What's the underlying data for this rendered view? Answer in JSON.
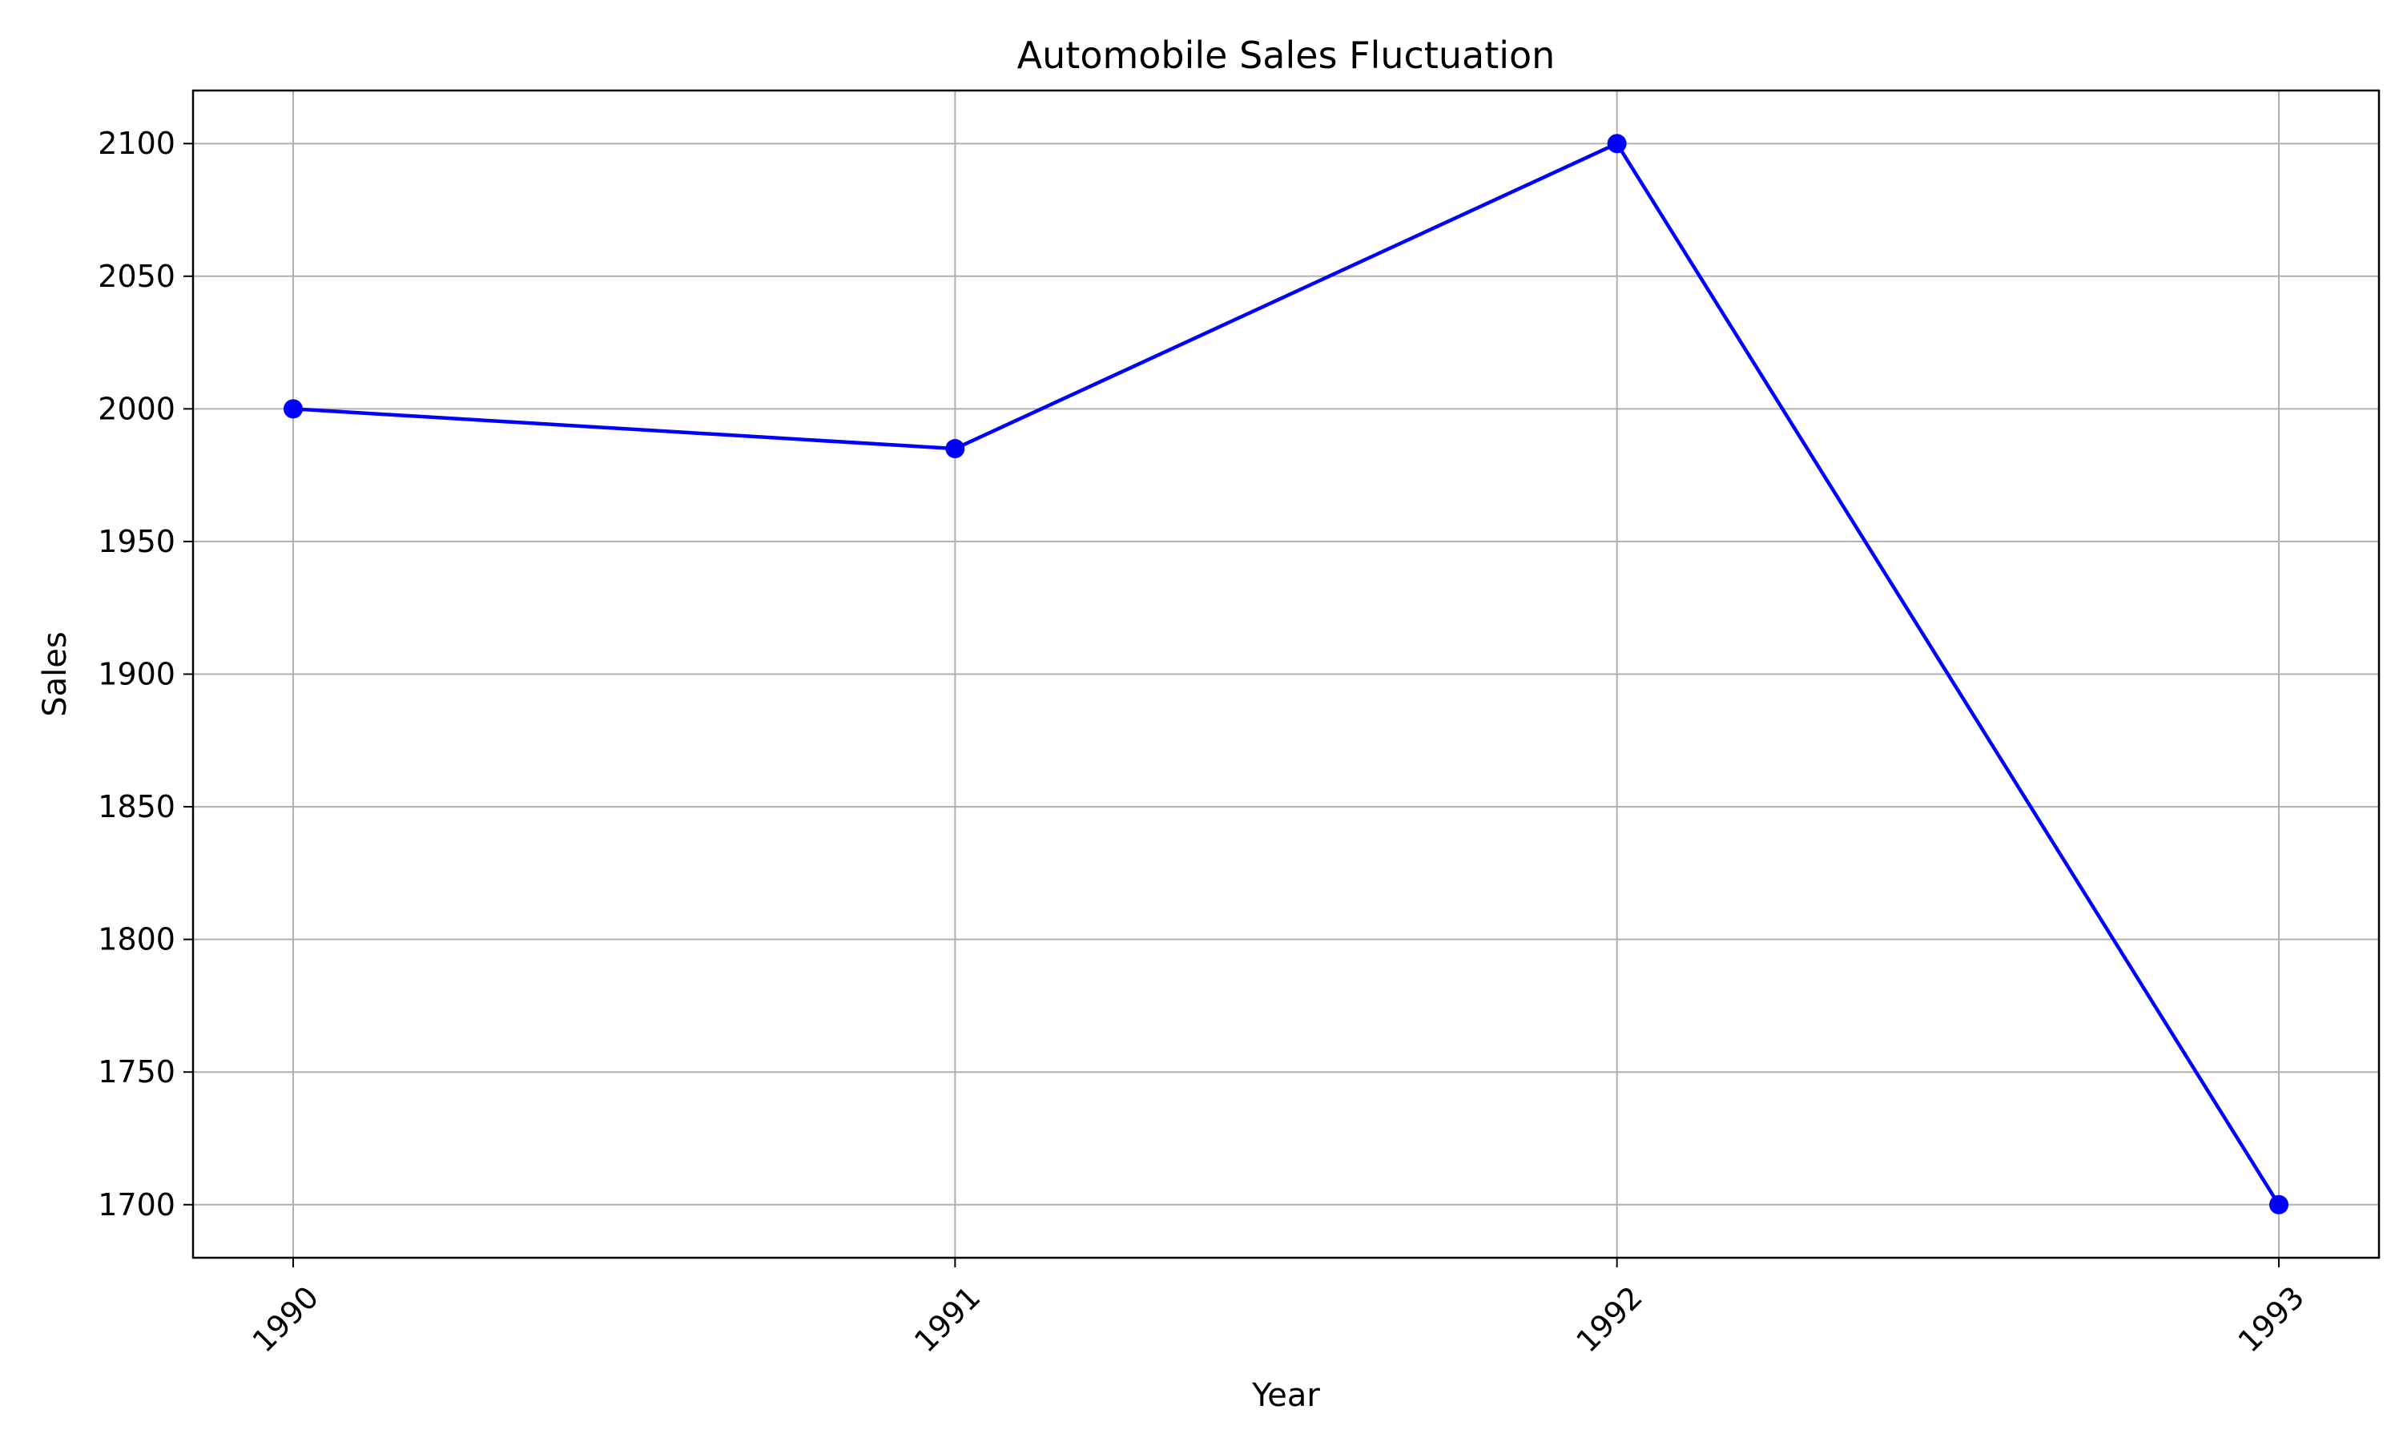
{
  "chart_data": {
    "type": "line",
    "title": "Automobile Sales Fluctuation",
    "xlabel": "Year",
    "ylabel": "Sales",
    "categories": [
      "1990",
      "1991",
      "1992",
      "1993"
    ],
    "series": [
      {
        "values": [
          2000,
          1985,
          2100,
          1700
        ],
        "color": "#0000ff",
        "marker": "circle"
      }
    ],
    "ylim": [
      1680,
      2120
    ],
    "yticks": [
      1700,
      1750,
      1800,
      1850,
      1900,
      1950,
      2000,
      2050,
      2100
    ],
    "grid": true,
    "xtick_rotation": 45
  }
}
